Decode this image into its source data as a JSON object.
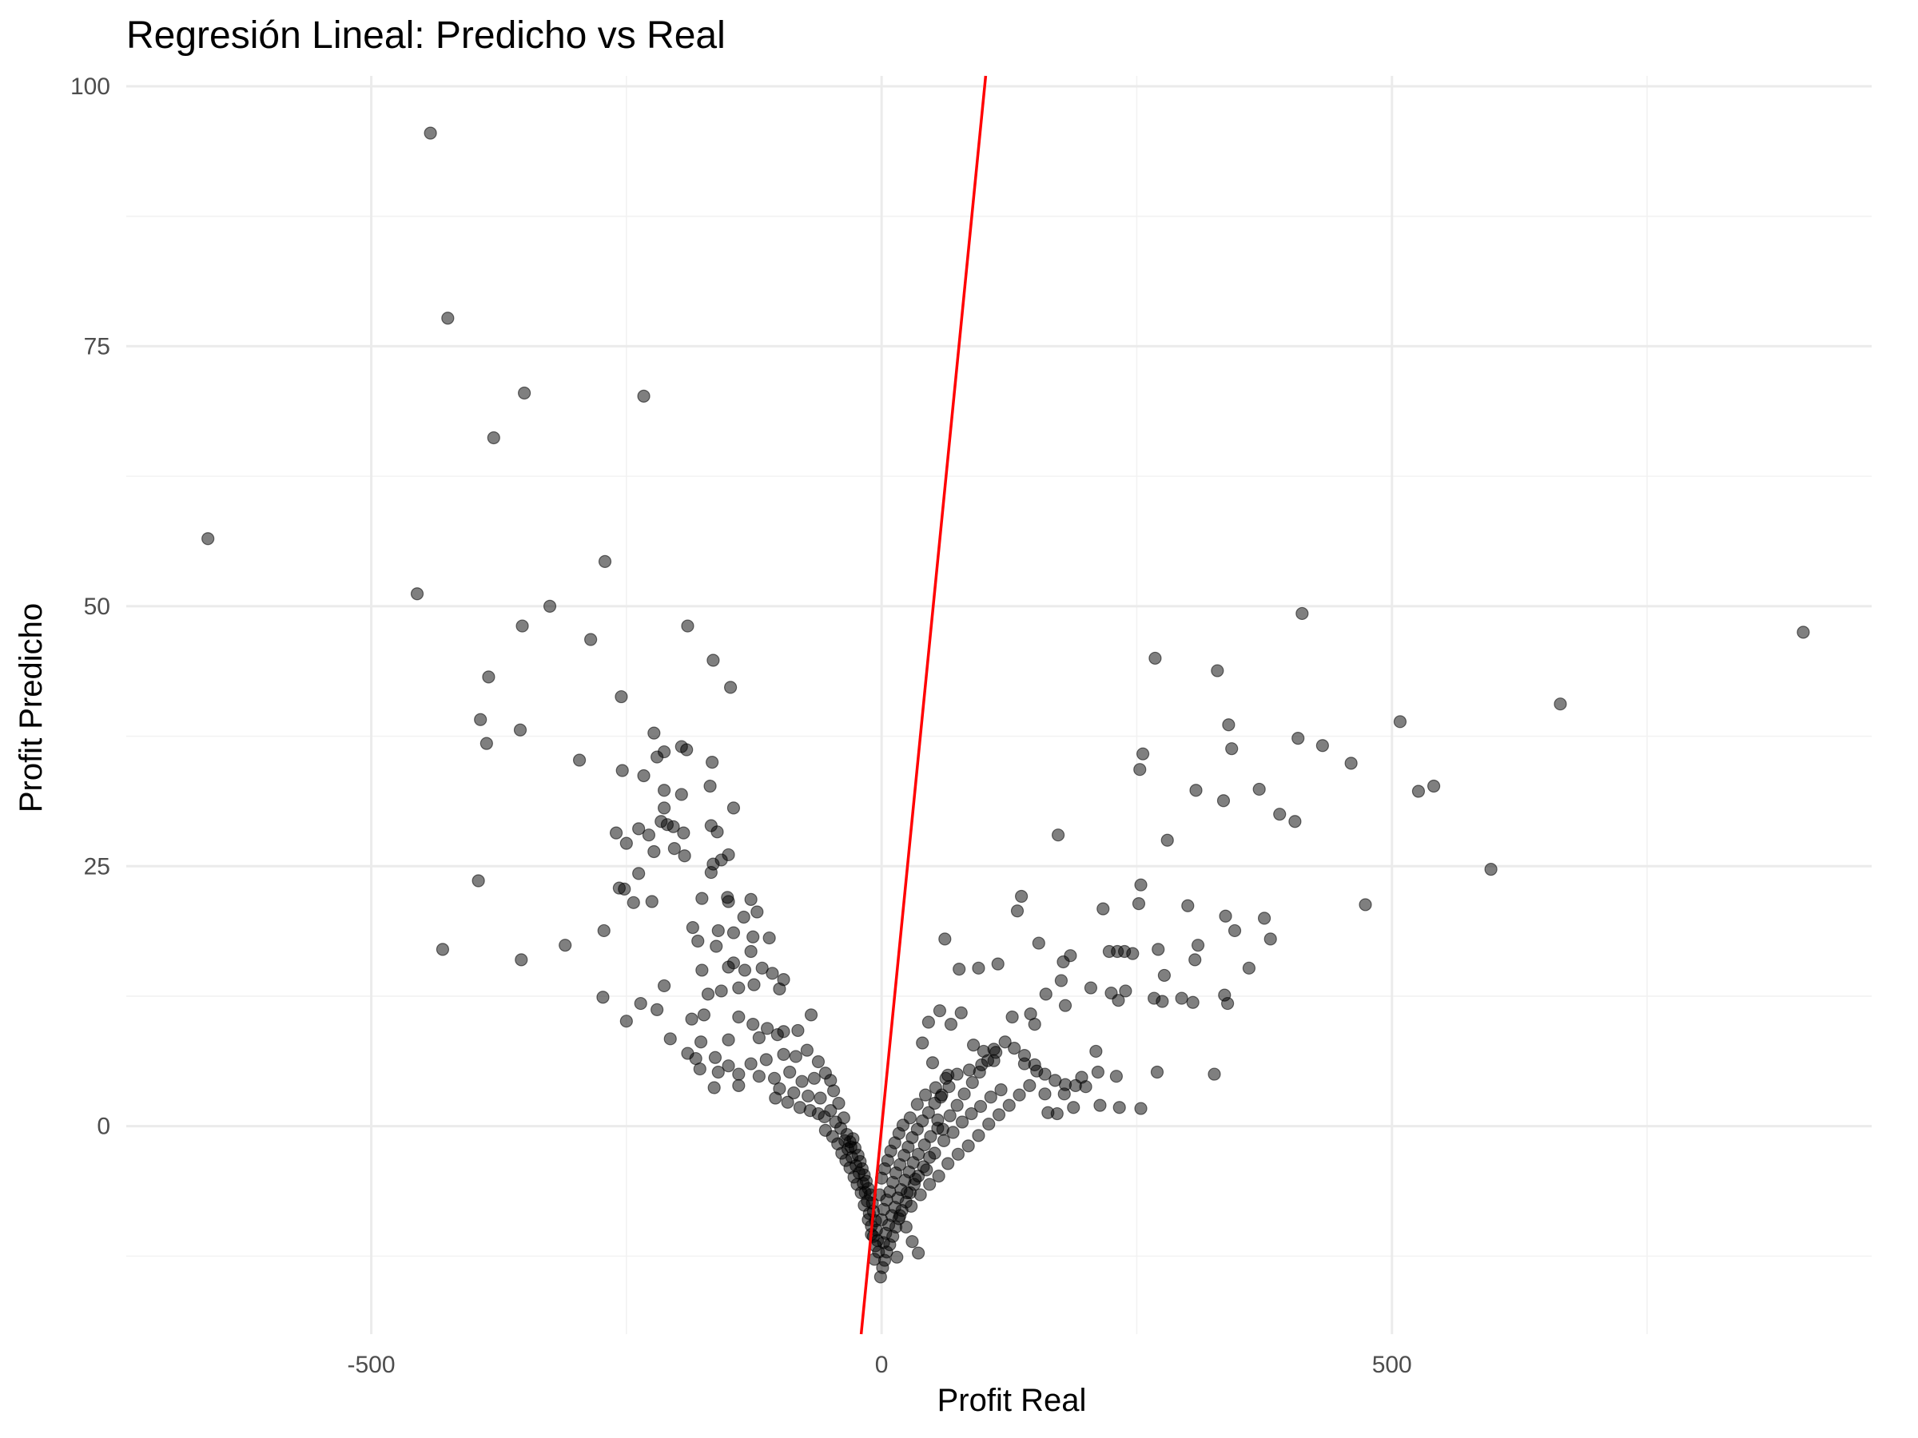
{
  "chart_data": {
    "type": "scatter",
    "title": "Regresión Lineal: Predicho vs Real",
    "xlabel": "Profit Real",
    "ylabel": "Profit Predicho",
    "xlim": [
      -740,
      970
    ],
    "ylim": [
      -20,
      101
    ],
    "x_ticks": [
      -500,
      0,
      500
    ],
    "x_tick_labels": [
      "-500",
      "0",
      "500"
    ],
    "x_minor_ticks": [
      -750,
      -250,
      250,
      750
    ],
    "y_ticks": [
      0,
      25,
      50,
      75,
      100
    ],
    "y_tick_labels": [
      "0",
      "25",
      "50",
      "75",
      "100"
    ],
    "y_minor_ticks": [
      -12.5,
      12.5,
      37.5,
      62.5,
      87.5
    ],
    "grid": true,
    "legend": "none",
    "point_color": "#000000",
    "point_alpha": 0.5,
    "fit_line": {
      "color": "#ff0000",
      "x": [
        -20,
        102
      ],
      "y": [
        -20,
        101
      ]
    },
    "points": [
      [
        -660,
        56.5
      ],
      [
        -442,
        95.5
      ],
      [
        -425,
        77.7
      ],
      [
        -350,
        70.5
      ],
      [
        -233,
        70.2
      ],
      [
        -380,
        66.2
      ],
      [
        -271,
        54.3
      ],
      [
        -455,
        51.2
      ],
      [
        -325,
        50.0
      ],
      [
        -352,
        48.1
      ],
      [
        -285,
        46.8
      ],
      [
        -190,
        48.1
      ],
      [
        -385,
        43.2
      ],
      [
        -165,
        44.8
      ],
      [
        -148,
        42.2
      ],
      [
        -255,
        41.3
      ],
      [
        -393,
        39.1
      ],
      [
        -354,
        38.1
      ],
      [
        -387,
        36.8
      ],
      [
        -296,
        35.2
      ],
      [
        -223,
        37.8
      ],
      [
        -213,
        36.0
      ],
      [
        -196,
        36.5
      ],
      [
        -166,
        35.0
      ],
      [
        -191,
        36.2
      ],
      [
        -220,
        35.5
      ],
      [
        -254,
        34.2
      ],
      [
        -233,
        33.7
      ],
      [
        -213,
        32.3
      ],
      [
        -196,
        31.9
      ],
      [
        -168,
        32.7
      ],
      [
        -145,
        30.6
      ],
      [
        -213,
        30.6
      ],
      [
        -216,
        29.3
      ],
      [
        -204,
        28.8
      ],
      [
        -194,
        28.2
      ],
      [
        -167,
        28.9
      ],
      [
        -161,
        28.3
      ],
      [
        -210,
        29.0
      ],
      [
        -238,
        28.6
      ],
      [
        -228,
        28.0
      ],
      [
        -260,
        28.2
      ],
      [
        -250,
        27.2
      ],
      [
        -223,
        26.4
      ],
      [
        -203,
        26.7
      ],
      [
        -193,
        26.0
      ],
      [
        -150,
        26.1
      ],
      [
        -165,
        25.2
      ],
      [
        -157,
        25.6
      ],
      [
        -167,
        24.4
      ],
      [
        -238,
        24.3
      ],
      [
        -395,
        23.6
      ],
      [
        -257,
        22.9
      ],
      [
        -252,
        22.8
      ],
      [
        -225,
        21.6
      ],
      [
        -176,
        21.9
      ],
      [
        -151,
        22.0
      ],
      [
        -243,
        21.5
      ],
      [
        -150,
        21.6
      ],
      [
        -128,
        21.8
      ],
      [
        -122,
        20.6
      ],
      [
        -135,
        20.1
      ],
      [
        -185,
        19.1
      ],
      [
        -160,
        18.8
      ],
      [
        -145,
        18.6
      ],
      [
        -110,
        18.1
      ],
      [
        -126,
        18.2
      ],
      [
        -272,
        18.8
      ],
      [
        -310,
        17.4
      ],
      [
        -430,
        17.0
      ],
      [
        -353,
        16.0
      ],
      [
        -180,
        17.8
      ],
      [
        -162,
        17.3
      ],
      [
        -128,
        16.8
      ],
      [
        -145,
        15.7
      ],
      [
        -134,
        15.0
      ],
      [
        -150,
        15.3
      ],
      [
        -176,
        15.0
      ],
      [
        -117,
        15.2
      ],
      [
        -107,
        14.7
      ],
      [
        -96,
        14.1
      ],
      [
        -100,
        13.2
      ],
      [
        -125,
        13.6
      ],
      [
        -140,
        13.3
      ],
      [
        -157,
        13.0
      ],
      [
        -170,
        12.7
      ],
      [
        -213,
        13.5
      ],
      [
        -236,
        11.8
      ],
      [
        -273,
        12.4
      ],
      [
        -220,
        11.2
      ],
      [
        -250,
        10.1
      ],
      [
        -186,
        10.3
      ],
      [
        -174,
        10.7
      ],
      [
        -140,
        10.5
      ],
      [
        -126,
        9.8
      ],
      [
        -112,
        9.4
      ],
      [
        -96,
        9.1
      ],
      [
        -82,
        9.2
      ],
      [
        -69,
        10.7
      ],
      [
        -102,
        8.8
      ],
      [
        -120,
        8.5
      ],
      [
        -150,
        8.3
      ],
      [
        -177,
        8.1
      ],
      [
        -207,
        8.4
      ],
      [
        -190,
        7.0
      ],
      [
        -163,
        6.6
      ],
      [
        -150,
        5.8
      ],
      [
        -128,
        6.0
      ],
      [
        -113,
        6.4
      ],
      [
        -96,
        6.9
      ],
      [
        -84,
        6.7
      ],
      [
        -73,
        7.3
      ],
      [
        -62,
        6.2
      ],
      [
        -182,
        6.5
      ],
      [
        -178,
        5.5
      ],
      [
        -160,
        5.2
      ],
      [
        -140,
        5.0
      ],
      [
        -120,
        4.8
      ],
      [
        -105,
        4.6
      ],
      [
        -90,
        5.2
      ],
      [
        -78,
        4.3
      ],
      [
        -66,
        4.6
      ],
      [
        -55,
        5.1
      ],
      [
        -50,
        4.4
      ],
      [
        -140,
        3.9
      ],
      [
        -164,
        3.7
      ],
      [
        -100,
        3.6
      ],
      [
        -86,
        3.2
      ],
      [
        -72,
        2.9
      ],
      [
        -60,
        2.7
      ],
      [
        -47,
        3.4
      ],
      [
        -42,
        2.2
      ],
      [
        -104,
        2.7
      ],
      [
        -92,
        2.3
      ],
      [
        -80,
        1.8
      ],
      [
        -70,
        1.5
      ],
      [
        -62,
        1.2
      ],
      [
        -56,
        0.9
      ],
      [
        -50,
        1.5
      ],
      [
        -45,
        0.4
      ],
      [
        -40,
        -0.2
      ],
      [
        -37,
        0.8
      ],
      [
        -34,
        -0.8
      ],
      [
        -31,
        -1.5
      ],
      [
        -28,
        -1.2
      ],
      [
        -26,
        -2.1
      ],
      [
        -23,
        -2.8
      ],
      [
        -21,
        -3.4
      ],
      [
        -19,
        -4.1
      ],
      [
        -17,
        -4.7
      ],
      [
        -15,
        -5.3
      ],
      [
        -13,
        -6.0
      ],
      [
        -11,
        -6.6
      ],
      [
        -9,
        -7.4
      ],
      [
        -8,
        -8.2
      ],
      [
        -6,
        -9.1
      ],
      [
        -5,
        -10.0
      ],
      [
        -4,
        -11.0
      ],
      [
        -3,
        -12.1
      ],
      [
        -7,
        -12.8
      ],
      [
        -33,
        -2.2
      ],
      [
        -29,
        -3.0
      ],
      [
        -25,
        -3.8
      ],
      [
        -22,
        -4.5
      ],
      [
        -18,
        -5.5
      ],
      [
        -16,
        -6.4
      ],
      [
        -14,
        -7.2
      ],
      [
        -12,
        -8.4
      ],
      [
        -10,
        -9.6
      ],
      [
        -8,
        -10.6
      ],
      [
        -6,
        -11.5
      ],
      [
        -48,
        -1.0
      ],
      [
        -43,
        -1.7
      ],
      [
        -39,
        -2.6
      ],
      [
        -35,
        -3.3
      ],
      [
        -31,
        -4.0
      ],
      [
        -27,
        -4.9
      ],
      [
        -24,
        -5.6
      ],
      [
        -20,
        -6.4
      ],
      [
        -17,
        -7.6
      ],
      [
        -13,
        -9.0
      ],
      [
        -10,
        -10.4
      ],
      [
        -55,
        -0.4
      ],
      [
        -36,
        -1.4
      ],
      [
        -30,
        -2.0
      ],
      [
        -1,
        -14.5
      ],
      [
        1,
        -13.6
      ],
      [
        3,
        -12.9
      ],
      [
        5,
        -12.1
      ],
      [
        8,
        -11.4
      ],
      [
        11,
        -10.6
      ],
      [
        14,
        -9.7
      ],
      [
        17,
        -8.9
      ],
      [
        20,
        -8.1
      ],
      [
        24,
        -7.3
      ],
      [
        28,
        -6.4
      ],
      [
        32,
        -5.6
      ],
      [
        36,
        -4.8
      ],
      [
        41,
        -3.9
      ],
      [
        47,
        -3.0
      ],
      [
        2,
        -11.2
      ],
      [
        4,
        -10.3
      ],
      [
        7,
        -9.5
      ],
      [
        10,
        -8.6
      ],
      [
        13,
        -7.8
      ],
      [
        16,
        -6.9
      ],
      [
        19,
        -6.1
      ],
      [
        23,
        -5.2
      ],
      [
        27,
        -4.4
      ],
      [
        31,
        -3.5
      ],
      [
        36,
        -2.7
      ],
      [
        42,
        -1.8
      ],
      [
        48,
        -1.0
      ],
      [
        55,
        -0.2
      ],
      [
        0,
        -9.0
      ],
      [
        2,
        -8.0
      ],
      [
        5,
        -7.1
      ],
      [
        8,
        -6.3
      ],
      [
        11,
        -5.4
      ],
      [
        14,
        -4.5
      ],
      [
        18,
        -3.7
      ],
      [
        22,
        -2.8
      ],
      [
        26,
        -2.0
      ],
      [
        30,
        -1.1
      ],
      [
        35,
        -0.3
      ],
      [
        40,
        0.5
      ],
      [
        46,
        1.3
      ],
      [
        52,
        2.2
      ],
      [
        59,
        3.0
      ],
      [
        66,
        3.8
      ],
      [
        0,
        -5.0
      ],
      [
        3,
        -4.1
      ],
      [
        6,
        -3.3
      ],
      [
        9,
        -2.4
      ],
      [
        13,
        -1.6
      ],
      [
        17,
        -0.7
      ],
      [
        21,
        0.1
      ],
      [
        -2,
        -6.6
      ],
      [
        25,
        -6.4
      ],
      [
        33,
        -5.1
      ],
      [
        44,
        -4.2
      ],
      [
        52,
        -2.6
      ],
      [
        61,
        -1.4
      ],
      [
        70,
        -0.6
      ],
      [
        79,
        0.4
      ],
      [
        88,
        1.2
      ],
      [
        97,
        1.9
      ],
      [
        107,
        2.8
      ],
      [
        117,
        3.5
      ],
      [
        28,
        0.8
      ],
      [
        35,
        2.1
      ],
      [
        43,
        3.0
      ],
      [
        53,
        3.7
      ],
      [
        63,
        4.6
      ],
      [
        74,
        5.0
      ],
      [
        86,
        5.4
      ],
      [
        98,
        5.9
      ],
      [
        110,
        6.3
      ],
      [
        18,
        -8.6
      ],
      [
        24,
        -9.7
      ],
      [
        30,
        -11.1
      ],
      [
        36,
        -12.2
      ],
      [
        15,
        -12.6
      ],
      [
        29,
        -7.7
      ],
      [
        38,
        -6.6
      ],
      [
        47,
        -5.6
      ],
      [
        56,
        -4.8
      ],
      [
        65,
        -3.6
      ],
      [
        75,
        -2.7
      ],
      [
        85,
        -1.9
      ],
      [
        95,
        -0.9
      ],
      [
        105,
        0.2
      ],
      [
        115,
        1.1
      ],
      [
        125,
        2.0
      ],
      [
        135,
        3.0
      ],
      [
        145,
        3.9
      ],
      [
        60,
        -0.3
      ],
      [
        67,
        1.0
      ],
      [
        74,
        2.0
      ],
      [
        81,
        3.1
      ],
      [
        89,
        4.2
      ],
      [
        96,
        5.2
      ],
      [
        104,
        6.3
      ],
      [
        112,
        7.1
      ],
      [
        121,
        8.1
      ],
      [
        130,
        7.5
      ],
      [
        140,
        6.8
      ],
      [
        150,
        5.9
      ],
      [
        160,
        5.0
      ],
      [
        170,
        4.4
      ],
      [
        180,
        4.0
      ],
      [
        190,
        3.9
      ],
      [
        200,
        3.8
      ],
      [
        55,
        0.6
      ],
      [
        58,
        2.8
      ],
      [
        65,
        4.9
      ],
      [
        50,
        6.1
      ],
      [
        40,
        8.0
      ],
      [
        46,
        10.0
      ],
      [
        57,
        11.1
      ],
      [
        68,
        9.8
      ],
      [
        78,
        10.9
      ],
      [
        90,
        7.8
      ],
      [
        100,
        7.2
      ],
      [
        110,
        7.4
      ],
      [
        128,
        10.5
      ],
      [
        140,
        6.0
      ],
      [
        152,
        5.3
      ],
      [
        163,
        1.3
      ],
      [
        172,
        1.2
      ],
      [
        188,
        1.8
      ],
      [
        214,
        2.0
      ],
      [
        233,
        1.8
      ],
      [
        160,
        3.1
      ],
      [
        179,
        3.1
      ],
      [
        196,
        4.7
      ],
      [
        212,
        5.2
      ],
      [
        230,
        4.8
      ],
      [
        62,
        18.0
      ],
      [
        76,
        15.1
      ],
      [
        95,
        15.2
      ],
      [
        114,
        15.6
      ],
      [
        133,
        20.7
      ],
      [
        137,
        22.1
      ],
      [
        146,
        10.8
      ],
      [
        150,
        9.8
      ],
      [
        161,
        12.7
      ],
      [
        154,
        17.6
      ],
      [
        178,
        15.8
      ],
      [
        176,
        14.0
      ],
      [
        185,
        16.4
      ],
      [
        180,
        11.6
      ],
      [
        205,
        13.3
      ],
      [
        217,
        20.9
      ],
      [
        223,
        16.8
      ],
      [
        231,
        16.8
      ],
      [
        238,
        16.8
      ],
      [
        246,
        16.6
      ],
      [
        252,
        21.4
      ],
      [
        254,
        23.2
      ],
      [
        253,
        34.3
      ],
      [
        256,
        35.8
      ],
      [
        271,
        17.0
      ],
      [
        267,
        12.3
      ],
      [
        275,
        12.0
      ],
      [
        277,
        14.5
      ],
      [
        280,
        27.5
      ],
      [
        294,
        12.3
      ],
      [
        305,
        11.9
      ],
      [
        307,
        16.0
      ],
      [
        308,
        32.3
      ],
      [
        310,
        17.4
      ],
      [
        326,
        5.0
      ],
      [
        335,
        31.3
      ],
      [
        336,
        12.6
      ],
      [
        337,
        20.2
      ],
      [
        340,
        38.6
      ],
      [
        343,
        36.3
      ],
      [
        346,
        18.8
      ],
      [
        360,
        15.2
      ],
      [
        370,
        32.4
      ],
      [
        375,
        20.0
      ],
      [
        381,
        18.0
      ],
      [
        390,
        30.0
      ],
      [
        405,
        29.3
      ],
      [
        408,
        37.3
      ],
      [
        412,
        49.3
      ],
      [
        432,
        36.6
      ],
      [
        460,
        34.9
      ],
      [
        474,
        21.3
      ],
      [
        508,
        38.9
      ],
      [
        526,
        32.2
      ],
      [
        541,
        32.7
      ],
      [
        597,
        24.7
      ],
      [
        665,
        40.6
      ],
      [
        903,
        47.5
      ],
      [
        268,
        45.0
      ],
      [
        239,
        13.0
      ],
      [
        232,
        12.1
      ],
      [
        270,
        5.2
      ],
      [
        254,
        1.7
      ],
      [
        173,
        28.0
      ],
      [
        329,
        43.8
      ],
      [
        339,
        11.8
      ],
      [
        300,
        21.2
      ],
      [
        210,
        7.2
      ],
      [
        225,
        12.8
      ]
    ]
  }
}
